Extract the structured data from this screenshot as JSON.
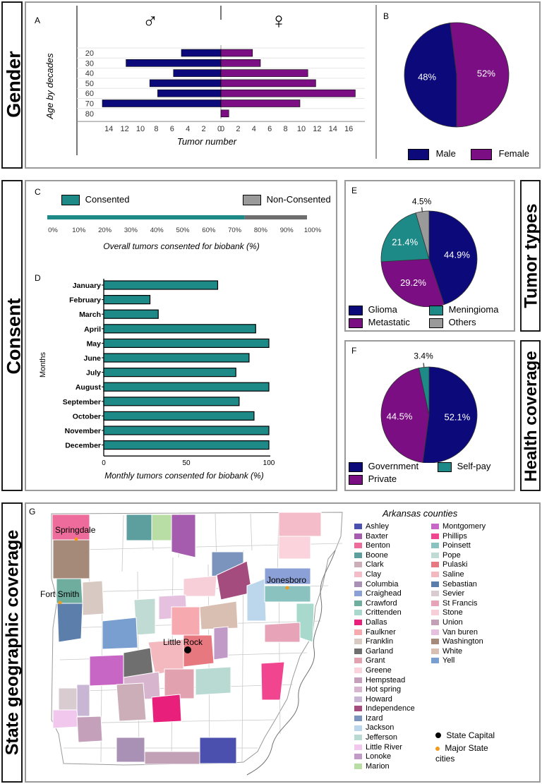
{
  "sections": {
    "gender": "Gender",
    "consent": "Consent",
    "tumor_types": "Tumor types",
    "health_coverage": "Health coverage",
    "geo": "State geographic coverage"
  },
  "panels": {
    "a": "A",
    "b": "B",
    "c": "C",
    "d": "D",
    "e": "E",
    "f": "F",
    "g": "G"
  },
  "symbols": {
    "male": "♂",
    "female": "♀"
  },
  "colors": {
    "navy": "#0c0a7a",
    "purple": "#7a0e82",
    "teal": "#1d8a88",
    "gray": "#9a9a9a",
    "darkgray": "#6e6e6e"
  },
  "chart_data": [
    {
      "id": "A",
      "type": "bar",
      "orientation": "horizontal-butterfly",
      "categories": [
        "20",
        "30",
        "40",
        "50",
        "60",
        "70",
        "80"
      ],
      "series": [
        {
          "name": "Male",
          "values": [
            5,
            12,
            6,
            9,
            8,
            15,
            0
          ]
        },
        {
          "name": "Female",
          "values": [
            4,
            5,
            11,
            12,
            17,
            10,
            1
          ]
        }
      ],
      "ylabel": "Age by decades",
      "xlabel": "Tumor number",
      "male_ticks": [
        "14",
        "12",
        "10",
        "8",
        "6",
        "4",
        "2",
        "0"
      ],
      "female_ticks": [
        "0",
        "2",
        "4",
        "6",
        "8",
        "10",
        "12",
        "14",
        "16"
      ]
    },
    {
      "id": "B",
      "type": "pie",
      "labels": [
        "Male",
        "Female"
      ],
      "values": [
        48,
        52
      ],
      "value_labels": [
        "48%",
        "52%"
      ],
      "legend": [
        "Male",
        "Female"
      ]
    },
    {
      "id": "C",
      "type": "bar",
      "orientation": "stacked-horizontal",
      "series": [
        {
          "name": "Consented",
          "value": 76
        },
        {
          "name": "Non-Consented",
          "value": 24
        }
      ],
      "ticks": [
        "0%",
        "10%",
        "20%",
        "30%",
        "40%",
        "50%",
        "60%",
        "70%",
        "80%",
        "90%",
        "100%"
      ],
      "xlabel": "Overall tumors consented for biobank (%)",
      "xlim": [
        0,
        100
      ]
    },
    {
      "id": "D",
      "type": "bar",
      "orientation": "horizontal",
      "categories": [
        "January",
        "February",
        "March",
        "April",
        "May",
        "June",
        "July",
        "August",
        "September",
        "October",
        "November",
        "December"
      ],
      "values": [
        69,
        28,
        33,
        92,
        100,
        88,
        80,
        100,
        82,
        91,
        100,
        100
      ],
      "ylabel": "Months",
      "xlabel": "Monthly tumors consented for biobank (%)",
      "ticks": [
        "0",
        "50",
        "100"
      ],
      "xlim": [
        0,
        100
      ]
    },
    {
      "id": "E",
      "type": "pie",
      "labels": [
        "Glioma",
        "Metastatic",
        "Meningioma",
        "Others"
      ],
      "values": [
        44.9,
        29.2,
        21.4,
        4.5
      ],
      "value_labels": [
        "44.9%",
        "29.2%",
        "21.4%",
        "4.5%"
      ],
      "legend": [
        "Glioma",
        "Meningioma",
        "Metastatic",
        "Others"
      ]
    },
    {
      "id": "F",
      "type": "pie",
      "labels": [
        "Government",
        "Private",
        "Self-pay"
      ],
      "values": [
        52.1,
        44.5,
        3.4
      ],
      "value_labels": [
        "52.1%",
        "44.5%",
        "3.4%"
      ],
      "legend": [
        "Government",
        "Self-pay",
        "Private"
      ]
    }
  ],
  "map": {
    "legend_title": "Arkansas counties",
    "cities": [
      "Springdale",
      "Jonesboro",
      "Fort Smith",
      "Little Rock"
    ],
    "capital_label": "State Capital",
    "major_cities_label": "Major State cities",
    "counties": [
      {
        "name": "Ashley",
        "color": "#4b4fae"
      },
      {
        "name": "Baxter",
        "color": "#a55cae"
      },
      {
        "name": "Benton",
        "color": "#ee6c9b"
      },
      {
        "name": "Boone",
        "color": "#5c9f9e"
      },
      {
        "name": "Clark",
        "color": "#cbaeb8"
      },
      {
        "name": "Clay",
        "color": "#f3bcc8"
      },
      {
        "name": "Columbia",
        "color": "#a891b4"
      },
      {
        "name": "Craighead",
        "color": "#8aa0d6"
      },
      {
        "name": "Crawford",
        "color": "#6fae9f"
      },
      {
        "name": "Crittenden",
        "color": "#a9d8cc"
      },
      {
        "name": "Dallas",
        "color": "#e8207c"
      },
      {
        "name": "Faulkner",
        "color": "#f6aab0"
      },
      {
        "name": "Franklin",
        "color": "#d8c9c3"
      },
      {
        "name": "Garland",
        "color": "#6f6f6f"
      },
      {
        "name": "Grant",
        "color": "#e2a1ae"
      },
      {
        "name": "Greene",
        "color": "#fad3dc"
      },
      {
        "name": "Hempstead",
        "color": "#c5a0ba"
      },
      {
        "name": "Hot spring",
        "color": "#d8b5cf"
      },
      {
        "name": "Howard",
        "color": "#c8b6d4"
      },
      {
        "name": "Independence",
        "color": "#a54c7e"
      },
      {
        "name": "Izard",
        "color": "#7b94bd"
      },
      {
        "name": "Jackson",
        "color": "#bcd7ec"
      },
      {
        "name": "Jefferson",
        "color": "#b8dad3"
      },
      {
        "name": "Little River",
        "color": "#f2c7ee"
      },
      {
        "name": "Lonoke",
        "color": "#c29ac8"
      },
      {
        "name": "Marion",
        "color": "#b8dea5"
      },
      {
        "name": "Montgomery",
        "color": "#c766c4"
      },
      {
        "name": "Phillips",
        "color": "#f1468f"
      },
      {
        "name": "Poinsett",
        "color": "#8ac2bf"
      },
      {
        "name": "Pope",
        "color": "#c0dbd3"
      },
      {
        "name": "Pulaski",
        "color": "#e7787f"
      },
      {
        "name": "Saline",
        "color": "#f3b9bf"
      },
      {
        "name": "Sebastian",
        "color": "#5c7eaa"
      },
      {
        "name": "Sevier",
        "color": "#d8ccd0"
      },
      {
        "name": "St Francis",
        "color": "#e7a3b8"
      },
      {
        "name": "Stone",
        "color": "#f6cfd8"
      },
      {
        "name": "Union",
        "color": "#c2a1b7"
      },
      {
        "name": "Van buren",
        "color": "#e6c0df"
      },
      {
        "name": "Washington",
        "color": "#a58a7a"
      },
      {
        "name": "White",
        "color": "#d8bfb1"
      },
      {
        "name": "Yell",
        "color": "#789fcf"
      }
    ]
  }
}
